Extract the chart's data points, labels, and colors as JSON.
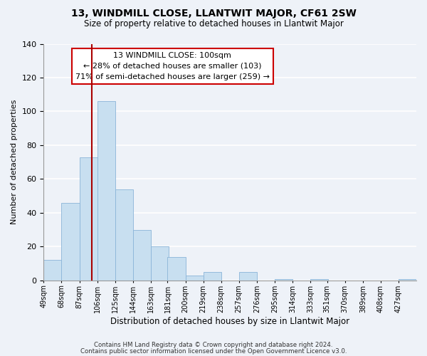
{
  "title": "13, WINDMILL CLOSE, LLANTWIT MAJOR, CF61 2SW",
  "subtitle": "Size of property relative to detached houses in Llantwit Major",
  "xlabel": "Distribution of detached houses by size in Llantwit Major",
  "ylabel": "Number of detached properties",
  "bar_color": "#c8dff0",
  "bar_edge_color": "#8ab4d8",
  "bin_labels": [
    "49sqm",
    "68sqm",
    "87sqm",
    "106sqm",
    "125sqm",
    "144sqm",
    "163sqm",
    "181sqm",
    "200sqm",
    "219sqm",
    "238sqm",
    "257sqm",
    "276sqm",
    "295sqm",
    "314sqm",
    "333sqm",
    "351sqm",
    "370sqm",
    "389sqm",
    "408sqm",
    "427sqm"
  ],
  "bin_edges": [
    49,
    68,
    87,
    106,
    125,
    144,
    163,
    181,
    200,
    219,
    238,
    257,
    276,
    295,
    314,
    333,
    351,
    370,
    389,
    408,
    427
  ],
  "bar_heights": [
    12,
    46,
    73,
    106,
    54,
    30,
    20,
    14,
    3,
    5,
    0,
    5,
    0,
    1,
    0,
    1,
    0,
    0,
    0,
    0,
    1
  ],
  "vline_x": 100,
  "vline_color": "#aa0000",
  "ylim": [
    0,
    140
  ],
  "yticks": [
    0,
    20,
    40,
    60,
    80,
    100,
    120,
    140
  ],
  "annotation_line1": "13 WINDMILL CLOSE: 100sqm",
  "annotation_line2": "← 28% of detached houses are smaller (103)",
  "annotation_line3": "71% of semi-detached houses are larger (259) →",
  "annotation_box_color": "#ffffff",
  "annotation_box_edge": "#cc0000",
  "footer_line1": "Contains HM Land Registry data © Crown copyright and database right 2024.",
  "footer_line2": "Contains public sector information licensed under the Open Government Licence v3.0.",
  "background_color": "#eef2f8",
  "grid_color": "#ffffff"
}
